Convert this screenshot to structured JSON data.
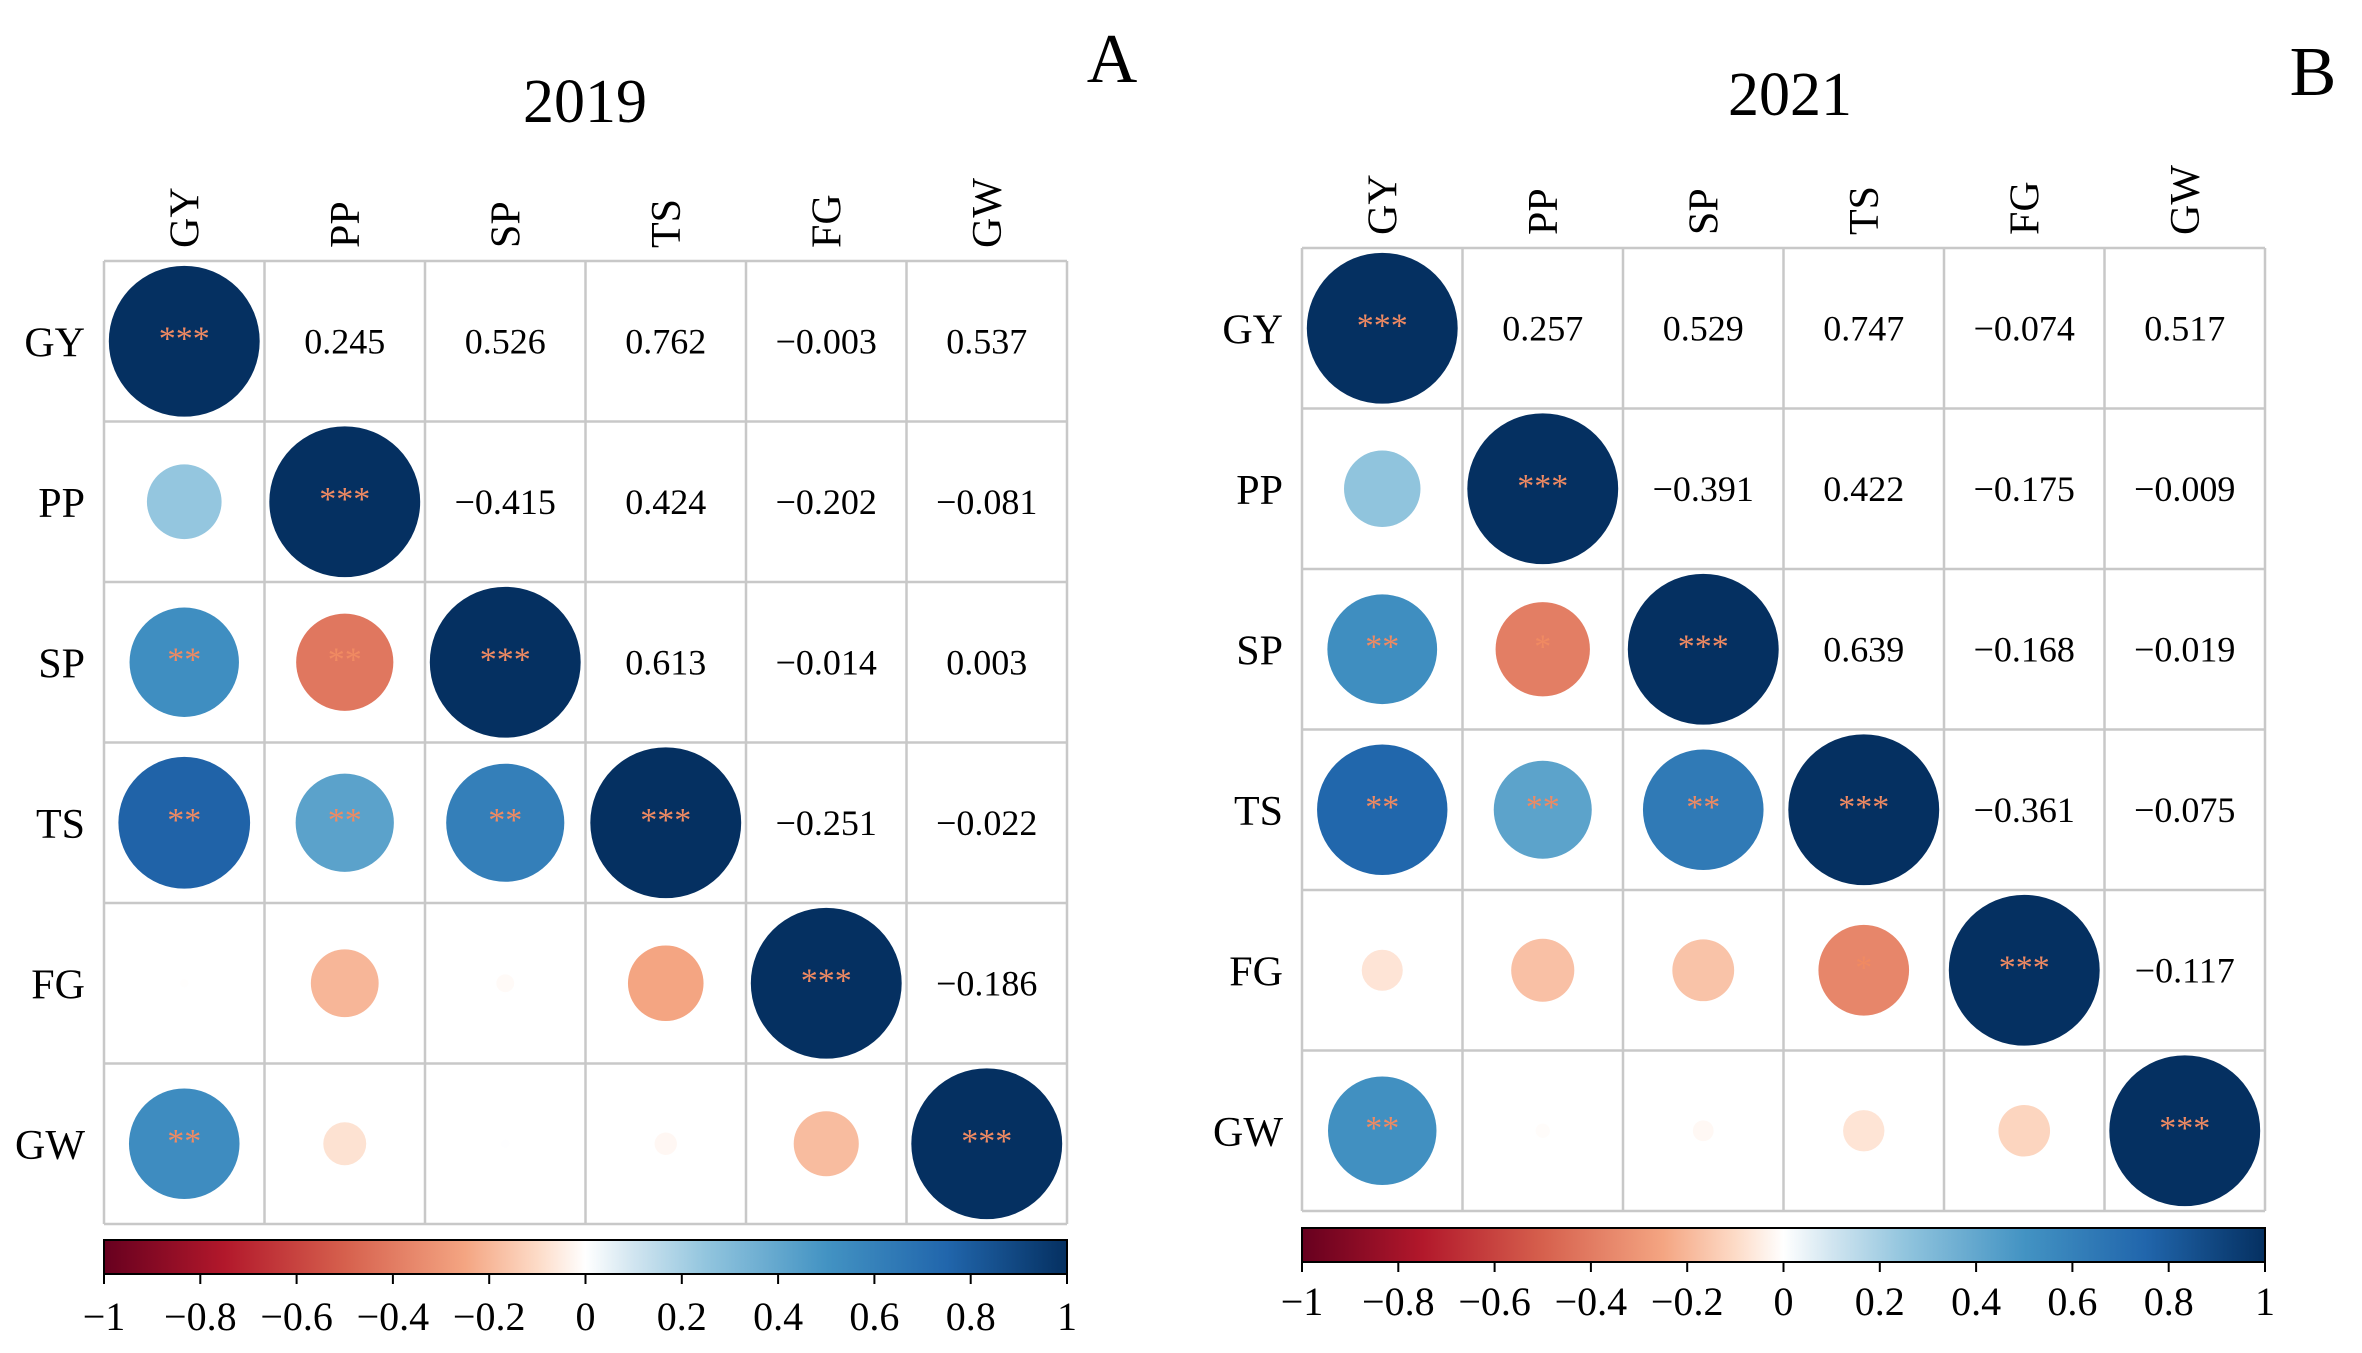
{
  "figure": "Correlation matrices (corrplot)",
  "chart_data": [
    {
      "type": "heatmap",
      "panel_label": "A",
      "title": "2019",
      "variables": [
        "GY",
        "PP",
        "SP",
        "TS",
        "FG",
        "GW"
      ],
      "upper_values": [
        [
          null,
          "0.245",
          "0.526",
          "0.762",
          "−0.003",
          "0.537"
        ],
        [
          null,
          null,
          "−0.415",
          "0.424",
          "−0.202",
          "−0.081"
        ],
        [
          null,
          null,
          null,
          "0.613",
          "−0.014",
          "0.003"
        ],
        [
          null,
          null,
          null,
          null,
          "−0.251",
          "−0.022"
        ],
        [
          null,
          null,
          null,
          null,
          null,
          "−0.186"
        ],
        [
          null,
          null,
          null,
          null,
          null,
          null
        ]
      ],
      "lower_values": [
        [
          1.0,
          null,
          null,
          null,
          null,
          null
        ],
        [
          0.245,
          1.0,
          null,
          null,
          null,
          null
        ],
        [
          0.526,
          -0.415,
          1.0,
          null,
          null,
          null
        ],
        [
          0.762,
          0.424,
          0.613,
          1.0,
          null,
          null
        ],
        [
          -0.003,
          -0.202,
          -0.014,
          -0.251,
          1.0,
          null
        ],
        [
          0.537,
          -0.081,
          0.003,
          -0.022,
          -0.186,
          1.0
        ]
      ],
      "significance": [
        [
          "***",
          null,
          null,
          null,
          null,
          null
        ],
        [
          "",
          "***",
          null,
          null,
          null,
          null
        ],
        [
          "**",
          "**",
          "***",
          null,
          null,
          null
        ],
        [
          "**",
          "**",
          "**",
          "***",
          null,
          null
        ],
        [
          "",
          "",
          "",
          "",
          "***",
          null
        ],
        [
          "**",
          "",
          "",
          "",
          "",
          "***"
        ]
      ],
      "colorbar": {
        "range": [
          -1,
          1
        ],
        "ticks": [
          "−1",
          "−0.8",
          "−0.6",
          "−0.4",
          "−0.2",
          "0",
          "0.2",
          "0.4",
          "0.6",
          "0.8",
          "1"
        ]
      }
    },
    {
      "type": "heatmap",
      "panel_label": "B",
      "title": "2021",
      "variables": [
        "GY",
        "PP",
        "SP",
        "TS",
        "FG",
        "GW"
      ],
      "upper_values": [
        [
          null,
          "0.257",
          "0.529",
          "0.747",
          "−0.074",
          "0.517"
        ],
        [
          null,
          null,
          "−0.391",
          "0.422",
          "−0.175",
          "−0.009"
        ],
        [
          null,
          null,
          null,
          "0.639",
          "−0.168",
          "−0.019"
        ],
        [
          null,
          null,
          null,
          null,
          "−0.361",
          "−0.075"
        ],
        [
          null,
          null,
          null,
          null,
          null,
          "−0.117"
        ],
        [
          null,
          null,
          null,
          null,
          null,
          null
        ]
      ],
      "lower_values": [
        [
          1.0,
          null,
          null,
          null,
          null,
          null
        ],
        [
          0.257,
          1.0,
          null,
          null,
          null,
          null
        ],
        [
          0.529,
          -0.391,
          1.0,
          null,
          null,
          null
        ],
        [
          0.747,
          0.422,
          0.639,
          1.0,
          null,
          null
        ],
        [
          -0.074,
          -0.175,
          -0.168,
          -0.361,
          1.0,
          null
        ],
        [
          0.517,
          -0.009,
          -0.019,
          -0.075,
          -0.117,
          1.0
        ]
      ],
      "significance": [
        [
          "***",
          null,
          null,
          null,
          null,
          null
        ],
        [
          "",
          "***",
          null,
          null,
          null,
          null
        ],
        [
          "**",
          "*",
          "***",
          null,
          null,
          null
        ],
        [
          "**",
          "**",
          "**",
          "***",
          null,
          null
        ],
        [
          "",
          "",
          "",
          "*",
          "***",
          null
        ],
        [
          "**",
          "",
          "",
          "",
          "",
          "***"
        ]
      ],
      "colorbar": {
        "range": [
          -1,
          1
        ],
        "ticks": [
          "−1",
          "−0.8",
          "−0.6",
          "−0.4",
          "−0.2",
          "0",
          "0.2",
          "0.4",
          "0.6",
          "0.8",
          "1"
        ]
      }
    }
  ]
}
